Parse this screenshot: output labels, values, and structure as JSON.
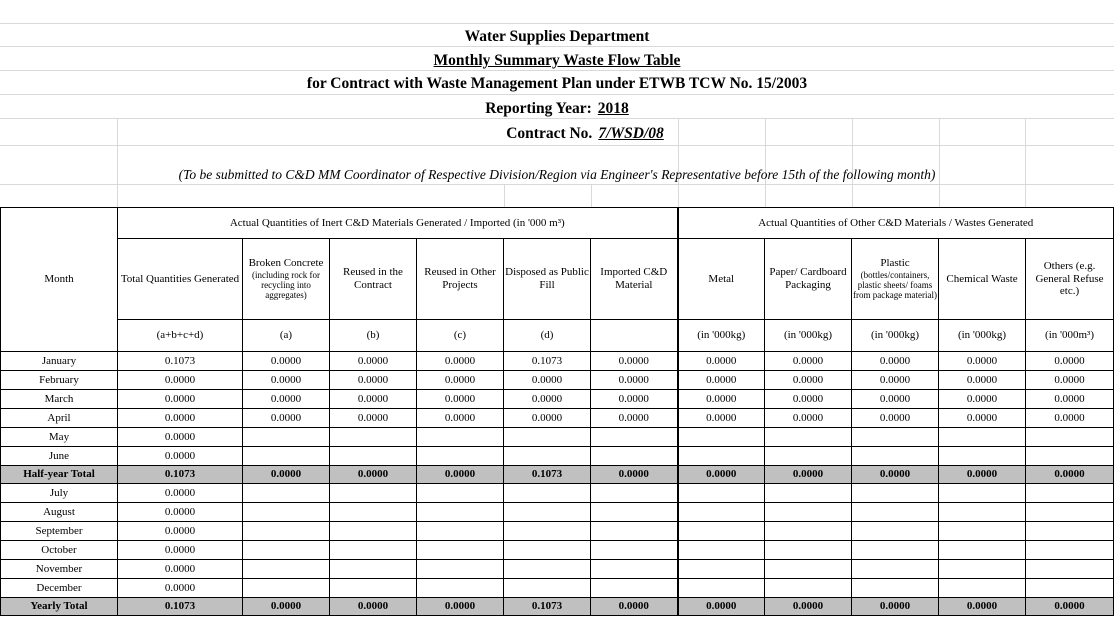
{
  "header": {
    "dept": "Water Supplies Department",
    "title": "Monthly Summary Waste Flow Table",
    "subtitle": "for Contract with Waste Management Plan under ETWB TCW No. 15/2003",
    "year_label": "Reporting Year:",
    "year": "2018",
    "contract_label": "Contract No.",
    "contract": "7/WSD/08",
    "note": "(To be submitted to C&D MM Coordinator of Respective Division/Region via Engineer's Representative before 15th of the following month)"
  },
  "table": {
    "month_header": "Month",
    "group_inert": "Actual Quantities of Inert C&D Materials Generated / Imported (in '000 m³)",
    "group_other": "Actual Quantities of Other C&D Materials / Wastes Generated",
    "columns": [
      {
        "label": "Total Quantities Generated",
        "unit": "(a+b+c+d)"
      },
      {
        "label": "Broken Concrete",
        "sub": "(including rock for recycling into aggregates)",
        "unit": "(a)"
      },
      {
        "label": "Reused in the Contract",
        "unit": "(b)"
      },
      {
        "label": "Reused in Other Projects",
        "unit": "(c)"
      },
      {
        "label": "Disposed as Public Fill",
        "unit": "(d)"
      },
      {
        "label": "Imported C&D Material",
        "unit": ""
      },
      {
        "label": "Metal",
        "unit": "(in '000kg)"
      },
      {
        "label": "Paper/ Cardboard Packaging",
        "unit": "(in '000kg)"
      },
      {
        "label": "Plastic",
        "sub": "(bottles/containers, plastic sheets/ foams from package material)",
        "unit": "(in '000kg)"
      },
      {
        "label": "Chemical Waste",
        "unit": "(in '000kg)"
      },
      {
        "label": "Others (e.g. General Refuse etc.)",
        "unit": "(in '000m³)"
      }
    ],
    "rows_h1": [
      {
        "month": "January",
        "values": [
          "0.1073",
          "0.0000",
          "0.0000",
          "0.0000",
          "0.1073",
          "0.0000",
          "0.0000",
          "0.0000",
          "0.0000",
          "0.0000",
          "0.0000"
        ]
      },
      {
        "month": "February",
        "values": [
          "0.0000",
          "0.0000",
          "0.0000",
          "0.0000",
          "0.0000",
          "0.0000",
          "0.0000",
          "0.0000",
          "0.0000",
          "0.0000",
          "0.0000"
        ]
      },
      {
        "month": "March",
        "values": [
          "0.0000",
          "0.0000",
          "0.0000",
          "0.0000",
          "0.0000",
          "0.0000",
          "0.0000",
          "0.0000",
          "0.0000",
          "0.0000",
          "0.0000"
        ]
      },
      {
        "month": "April",
        "values": [
          "0.0000",
          "0.0000",
          "0.0000",
          "0.0000",
          "0.0000",
          "0.0000",
          "0.0000",
          "0.0000",
          "0.0000",
          "0.0000",
          "0.0000"
        ]
      },
      {
        "month": "May",
        "values": [
          "0.0000",
          "",
          "",
          "",
          "",
          "",
          "",
          "",
          "",
          "",
          ""
        ]
      },
      {
        "month": "June",
        "values": [
          "0.0000",
          "",
          "",
          "",
          "",
          "",
          "",
          "",
          "",
          "",
          ""
        ]
      }
    ],
    "half_total": {
      "month": "Half-year Total",
      "values": [
        "0.1073",
        "0.0000",
        "0.0000",
        "0.0000",
        "0.1073",
        "0.0000",
        "0.0000",
        "0.0000",
        "0.0000",
        "0.0000",
        "0.0000"
      ]
    },
    "rows_h2": [
      {
        "month": "July",
        "values": [
          "0.0000",
          "",
          "",
          "",
          "",
          "",
          "",
          "",
          "",
          "",
          ""
        ]
      },
      {
        "month": "August",
        "values": [
          "0.0000",
          "",
          "",
          "",
          "",
          "",
          "",
          "",
          "",
          "",
          ""
        ]
      },
      {
        "month": "September",
        "values": [
          "0.0000",
          "",
          "",
          "",
          "",
          "",
          "",
          "",
          "",
          "",
          ""
        ]
      },
      {
        "month": "October",
        "values": [
          "0.0000",
          "",
          "",
          "",
          "",
          "",
          "",
          "",
          "",
          "",
          ""
        ]
      },
      {
        "month": "November",
        "values": [
          "0.0000",
          "",
          "",
          "",
          "",
          "",
          "",
          "",
          "",
          "",
          ""
        ]
      },
      {
        "month": "December",
        "values": [
          "0.0000",
          "",
          "",
          "",
          "",
          "",
          "",
          "",
          "",
          "",
          ""
        ]
      }
    ],
    "yearly_total": {
      "month": "Yearly Total",
      "values": [
        "0.1073",
        "0.0000",
        "0.0000",
        "0.0000",
        "0.1073",
        "0.0000",
        "0.0000",
        "0.0000",
        "0.0000",
        "0.0000",
        "0.0000"
      ]
    }
  }
}
